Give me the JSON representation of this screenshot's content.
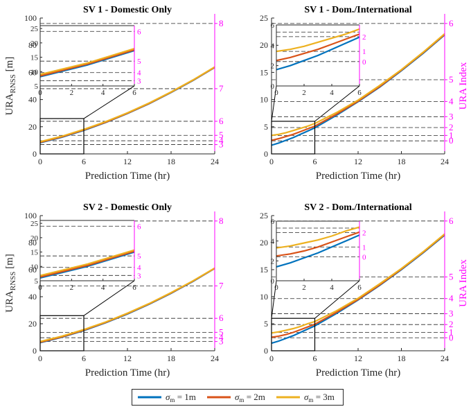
{
  "colors": {
    "sigma_1m": "#0072BD",
    "sigma_2m": "#D95319",
    "sigma_3m": "#EDB120",
    "right_axis": "#FF00FF",
    "axes": "#262626"
  },
  "legend": [
    {
      "sym": "σ",
      "sub": "m",
      "text": " = 1m",
      "key": "sigma_1m"
    },
    {
      "sym": "σ",
      "sub": "m",
      "text": " = 2m",
      "key": "sigma_2m"
    },
    {
      "sym": "σ",
      "sub": "m",
      "text": " = 3m",
      "key": "sigma_3m"
    }
  ],
  "labels": {
    "ylabel_left_main": "URA",
    "ylabel_left_sub": "RNSS",
    "ylabel_left_unit": " [m]",
    "ylabel_right": "URA Index",
    "xlabel": "Prediction Time (hr)"
  },
  "chart_data": [
    {
      "type": "line",
      "title": "SV 1 - Domestic Only",
      "xlabel": "Prediction Time (hr)",
      "ylabel": "URA RNSS [m]",
      "ylabel_right": "",
      "xlim": [
        0,
        24
      ],
      "xticks": [
        0,
        6,
        12,
        18,
        24
      ],
      "ylim": [
        0,
        100
      ],
      "yticks": [
        0,
        20,
        40,
        60,
        80,
        100
      ],
      "ura_thresholds": [
        {
          "m": 6.85,
          "index": "3"
        },
        {
          "m": 9.65,
          "index": "4"
        },
        {
          "m": 13.65,
          "index": "5"
        },
        {
          "m": 24.0,
          "index": "6"
        },
        {
          "m": 48.0,
          "index": "7"
        },
        {
          "m": 96.0,
          "index": "8"
        }
      ],
      "series": [
        {
          "name": "σm = 1m",
          "color_key": "sigma_1m",
          "x": [
            0,
            3,
            6,
            9,
            12,
            15,
            18,
            21,
            24
          ],
          "y": [
            8.2,
            12.3,
            17.3,
            23.1,
            29.7,
            37.0,
            45.2,
            54.0,
            63.6
          ]
        },
        {
          "name": "σm = 2m",
          "color_key": "sigma_2m",
          "x": [
            0,
            3,
            6,
            9,
            12,
            15,
            18,
            21,
            24
          ],
          "y": [
            8.5,
            12.6,
            17.6,
            23.3,
            29.9,
            37.2,
            45.4,
            54.2,
            63.8
          ]
        },
        {
          "name": "σm = 3m",
          "color_key": "sigma_3m",
          "x": [
            0,
            3,
            6,
            9,
            12,
            15,
            18,
            21,
            24
          ],
          "y": [
            9.0,
            13.0,
            18.0,
            23.7,
            30.2,
            37.5,
            45.6,
            54.4,
            64.0
          ]
        }
      ],
      "inset": {
        "xlim": [
          0,
          6
        ],
        "xticks": [
          0,
          2,
          4,
          6
        ],
        "ylim": [
          5,
          26
        ],
        "yticks": [
          5,
          10,
          15,
          20,
          25
        ],
        "thresholds": [
          6.85,
          9.65,
          13.65,
          24.0
        ],
        "right_ticks": [
          {
            "v": 6.85,
            "t": "3"
          },
          {
            "v": 9.65,
            "t": "4"
          },
          {
            "v": 13.65,
            "t": "5"
          },
          {
            "v": 24.0,
            "t": "6"
          }
        ]
      }
    },
    {
      "type": "line",
      "title": "SV 1 - Dom./International",
      "xlabel": "Prediction Time (hr)",
      "ylabel": "",
      "ylabel_right": "URA Index",
      "xlim": [
        0,
        24
      ],
      "xticks": [
        0,
        6,
        12,
        18,
        24
      ],
      "ylim": [
        0,
        25
      ],
      "yticks": [
        0,
        5,
        10,
        15,
        20,
        25
      ],
      "ura_thresholds": [
        {
          "m": 2.4,
          "index": "0"
        },
        {
          "m": 3.4,
          "index": "1"
        },
        {
          "m": 4.85,
          "index": "2"
        },
        {
          "m": 6.85,
          "index": "3"
        },
        {
          "m": 9.65,
          "index": "4"
        },
        {
          "m": 13.65,
          "index": "5"
        },
        {
          "m": 24.0,
          "index": "6"
        }
      ],
      "series": [
        {
          "name": "σm = 1m",
          "color_key": "sigma_1m",
          "x": [
            0,
            1,
            2,
            3,
            4,
            5,
            6,
            9,
            12,
            15,
            18,
            21,
            24
          ],
          "y": [
            1.6,
            2.0,
            2.5,
            3.0,
            3.6,
            4.2,
            4.8,
            7.1,
            9.6,
            12.3,
            15.3,
            18.5,
            21.9
          ]
        },
        {
          "name": "σm = 2m",
          "color_key": "sigma_2m",
          "x": [
            0,
            1,
            2,
            3,
            4,
            5,
            6,
            9,
            12,
            15,
            18,
            21,
            24
          ],
          "y": [
            2.5,
            2.8,
            3.2,
            3.6,
            4.1,
            4.6,
            5.1,
            7.3,
            9.7,
            12.4,
            15.4,
            18.6,
            22.0
          ]
        },
        {
          "name": "σm = 3m",
          "color_key": "sigma_3m",
          "x": [
            0,
            1,
            2,
            3,
            4,
            5,
            6,
            9,
            12,
            15,
            18,
            21,
            24
          ],
          "y": [
            3.4,
            3.6,
            3.9,
            4.3,
            4.7,
            5.1,
            5.6,
            7.6,
            9.9,
            12.6,
            15.5,
            18.7,
            22.1
          ]
        }
      ],
      "inset": {
        "xlim": [
          0,
          6
        ],
        "xticks": [
          0,
          2,
          4,
          6
        ],
        "ylim": [
          0,
          6
        ],
        "yticks": [
          0,
          2,
          4,
          6
        ],
        "thresholds": [
          2.4,
          3.4,
          4.85,
          5.3
        ],
        "right_ticks": [
          {
            "v": 2.4,
            "t": "0"
          },
          {
            "v": 3.4,
            "t": "1"
          },
          {
            "v": 4.85,
            "t": "2"
          }
        ]
      }
    },
    {
      "type": "line",
      "title": "SV 2 - Domestic Only",
      "xlabel": "Prediction Time (hr)",
      "ylabel": "URA RNSS [m]",
      "ylabel_right": "",
      "xlim": [
        0,
        24
      ],
      "xticks": [
        0,
        6,
        12,
        18,
        24
      ],
      "ylim": [
        0,
        100
      ],
      "yticks": [
        0,
        20,
        40,
        60,
        80,
        100
      ],
      "ura_thresholds": [
        {
          "m": 6.85,
          "index": "3"
        },
        {
          "m": 9.65,
          "index": "4"
        },
        {
          "m": 13.65,
          "index": "5"
        },
        {
          "m": 24.0,
          "index": "6"
        },
        {
          "m": 48.0,
          "index": "7"
        },
        {
          "m": 96.0,
          "index": "8"
        }
      ],
      "series": [
        {
          "name": "σm = 1m",
          "color_key": "sigma_1m",
          "x": [
            0,
            3,
            6,
            9,
            12,
            15,
            18,
            21,
            24
          ],
          "y": [
            6.0,
            10.0,
            15.0,
            20.7,
            27.2,
            34.5,
            42.5,
            51.3,
            60.9
          ]
        },
        {
          "name": "σm = 2m",
          "color_key": "sigma_2m",
          "x": [
            0,
            3,
            6,
            9,
            12,
            15,
            18,
            21,
            24
          ],
          "y": [
            6.3,
            10.3,
            15.3,
            21.0,
            27.5,
            34.7,
            42.7,
            51.5,
            61.0
          ]
        },
        {
          "name": "σm = 3m",
          "color_key": "sigma_3m",
          "x": [
            0,
            3,
            6,
            9,
            12,
            15,
            18,
            21,
            24
          ],
          "y": [
            6.8,
            10.8,
            15.7,
            21.3,
            27.8,
            35.0,
            43.0,
            51.7,
            61.2
          ]
        }
      ],
      "inset": {
        "xlim": [
          0,
          6
        ],
        "xticks": [
          0,
          2,
          4,
          6
        ],
        "ylim": [
          5,
          26
        ],
        "yticks": [
          5,
          10,
          15,
          20,
          25
        ],
        "thresholds": [
          6.85,
          9.65,
          13.65,
          24.0
        ],
        "right_ticks": [
          {
            "v": 6.85,
            "t": "3"
          },
          {
            "v": 9.65,
            "t": "4"
          },
          {
            "v": 13.65,
            "t": "5"
          },
          {
            "v": 24.0,
            "t": "6"
          }
        ]
      }
    },
    {
      "type": "line",
      "title": "SV 2 - Dom./International",
      "xlabel": "Prediction Time (hr)",
      "ylabel": "",
      "ylabel_right": "URA Index",
      "xlim": [
        0,
        24
      ],
      "xticks": [
        0,
        6,
        12,
        18,
        24
      ],
      "ylim": [
        0,
        25
      ],
      "yticks": [
        0,
        5,
        10,
        15,
        20,
        25
      ],
      "ura_thresholds": [
        {
          "m": 2.4,
          "index": "0"
        },
        {
          "m": 3.4,
          "index": "1"
        },
        {
          "m": 4.85,
          "index": "2"
        },
        {
          "m": 6.85,
          "index": "3"
        },
        {
          "m": 9.65,
          "index": "4"
        },
        {
          "m": 13.65,
          "index": "5"
        },
        {
          "m": 24.0,
          "index": "6"
        }
      ],
      "series": [
        {
          "name": "σm = 1m",
          "color_key": "sigma_1m",
          "x": [
            0,
            1,
            2,
            3,
            4,
            5,
            6,
            9,
            12,
            15,
            18,
            21,
            24
          ],
          "y": [
            1.4,
            1.8,
            2.3,
            2.8,
            3.4,
            4.0,
            4.6,
            6.9,
            9.4,
            12.1,
            15.0,
            18.1,
            21.4
          ]
        },
        {
          "name": "σm = 2m",
          "color_key": "sigma_2m",
          "x": [
            0,
            1,
            2,
            3,
            4,
            5,
            6,
            9,
            12,
            15,
            18,
            21,
            24
          ],
          "y": [
            2.5,
            2.7,
            3.0,
            3.4,
            3.9,
            4.4,
            4.9,
            7.1,
            9.5,
            12.2,
            15.1,
            18.2,
            21.5
          ]
        },
        {
          "name": "σm = 3m",
          "color_key": "sigma_3m",
          "x": [
            0,
            1,
            2,
            3,
            4,
            5,
            6,
            9,
            12,
            15,
            18,
            21,
            24
          ],
          "y": [
            3.3,
            3.5,
            3.8,
            4.1,
            4.5,
            5.0,
            5.4,
            7.4,
            9.7,
            12.4,
            15.2,
            18.3,
            21.6
          ]
        }
      ],
      "inset": {
        "xlim": [
          0,
          6
        ],
        "xticks": [
          0,
          2,
          4,
          6
        ],
        "ylim": [
          0,
          6
        ],
        "yticks": [
          0,
          2,
          4,
          6
        ],
        "thresholds": [
          2.4,
          3.4,
          4.85,
          5.3
        ],
        "right_ticks": [
          {
            "v": 2.4,
            "t": "0"
          },
          {
            "v": 3.4,
            "t": "1"
          },
          {
            "v": 4.85,
            "t": "2"
          }
        ]
      }
    }
  ]
}
